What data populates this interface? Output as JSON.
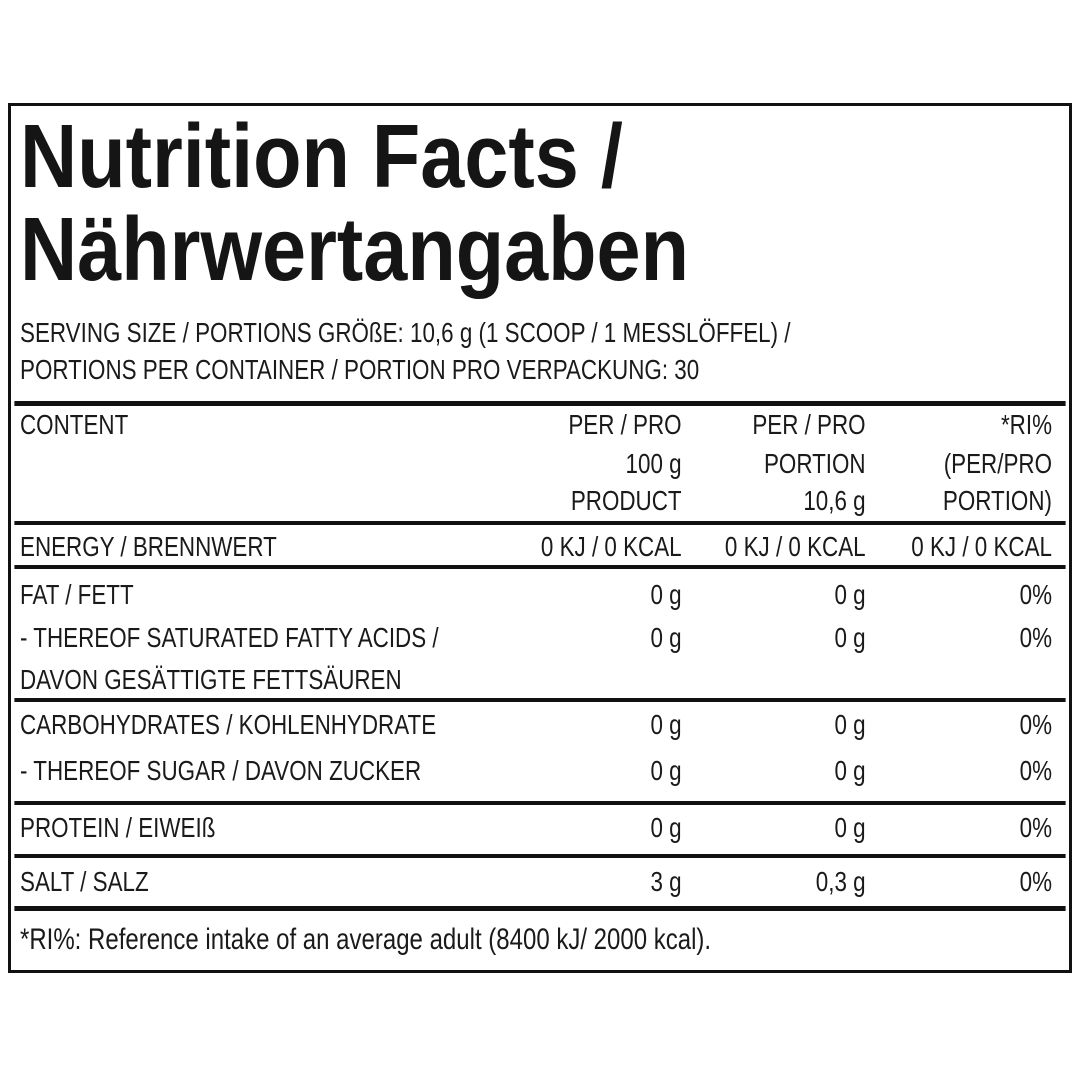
{
  "header": {
    "title": [
      "Nutrition Facts /",
      "Nährwertangaben"
    ],
    "serving": [
      "SERVING SIZE / PORTIONS GRÖßE: 10,6 g (1 SCOOP / 1 MESSLÖFFEL) /",
      "PORTIONS PER CONTAINER / PORTION PRO VERPACKUNG: 30"
    ]
  },
  "table": {
    "columns": [
      [
        "CONTENT"
      ],
      [
        "PER / PRO",
        "100 g",
        "PRODUCT"
      ],
      [
        "PER / PRO",
        "PORTION",
        "10,6 g"
      ],
      [
        "*RI%",
        "(PER/PRO",
        "PORTION)"
      ]
    ],
    "groups": [
      [
        [
          [
            "ENERGY / BRENNWERT"
          ],
          "0 KJ / 0 KCAL",
          "0 KJ / 0 KCAL",
          "0 KJ / 0 KCAL"
        ]
      ],
      [
        [
          [
            "FAT / FETT"
          ],
          "0 g",
          "0 g",
          "0%"
        ],
        [
          [
            "- THEREOF SATURATED FATTY ACIDS /",
            "DAVON GESÄTTIGTE FETTSÄUREN"
          ],
          "0 g",
          "0 g",
          "0%"
        ]
      ],
      [
        [
          [
            "CARBOHYDRATES / KOHLENHYDRATE"
          ],
          "0 g",
          "0 g",
          "0%"
        ],
        [
          [
            "- THEREOF SUGAR / DAVON ZUCKER"
          ],
          "0 g",
          "0 g",
          "0%"
        ]
      ],
      [
        [
          [
            "PROTEIN / EIWEIß"
          ],
          "0 g",
          "0 g",
          "0%"
        ]
      ],
      [
        [
          [
            "SALT / SALZ"
          ],
          "3 g",
          "0,3 g",
          "0%"
        ]
      ]
    ]
  },
  "footnote": "*RI%: Reference intake of an average adult (8400 kJ/ 2000 kcal)."
}
